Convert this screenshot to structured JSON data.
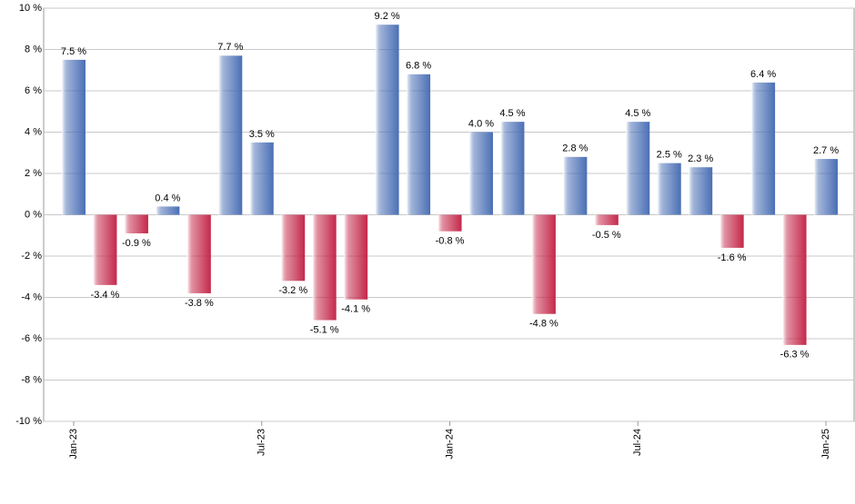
{
  "chart_data": {
    "type": "bar",
    "categories": [
      "Jan-23",
      null,
      null,
      null,
      null,
      null,
      "Jul-23",
      null,
      null,
      null,
      null,
      null,
      "Jan-24",
      null,
      null,
      null,
      null,
      null,
      "Jul-24",
      null,
      null,
      null,
      null,
      null,
      "Jan-25"
    ],
    "values": [
      7.5,
      -3.4,
      -0.9,
      0.4,
      -3.8,
      7.7,
      3.5,
      -3.2,
      -5.1,
      -4.1,
      9.2,
      6.8,
      -0.8,
      4.0,
      4.5,
      -4.8,
      2.8,
      -0.5,
      4.5,
      2.5,
      2.3,
      -1.6,
      6.4,
      -6.3,
      2.7
    ],
    "value_labels": [
      "7.5 %",
      "-3.4 %",
      "-0.9 %",
      "0.4 %",
      "-3.8 %",
      "7.7 %",
      "3.5 %",
      "-3.2 %",
      "-5.1 %",
      "-4.1 %",
      "9.2 %",
      "6.8 %",
      "-0.8 %",
      "4.0 %",
      "4.5 %",
      "-4.8 %",
      "2.8 %",
      "-0.5 %",
      "4.5 %",
      "2.5 %",
      "2.3 %",
      "-1.6 %",
      "6.4 %",
      "-6.3 %",
      "2.7 %"
    ],
    "positive_color": "#4a6fb5",
    "negative_color": "#c4284a",
    "ylim": [
      -10,
      10
    ],
    "yticks": [
      {
        "value": -10,
        "label": "-10 %"
      },
      {
        "value": -8,
        "label": "-8 %"
      },
      {
        "value": -6,
        "label": "-6 %"
      },
      {
        "value": -4,
        "label": "-4 %"
      },
      {
        "value": -2,
        "label": "-2 %"
      },
      {
        "value": 0,
        "label": "0 %"
      },
      {
        "value": 2,
        "label": "2 %"
      },
      {
        "value": 4,
        "label": "4 %"
      },
      {
        "value": 6,
        "label": "6 %"
      },
      {
        "value": 8,
        "label": "8 %"
      },
      {
        "value": 10,
        "label": "10 %"
      }
    ],
    "grid": true
  }
}
